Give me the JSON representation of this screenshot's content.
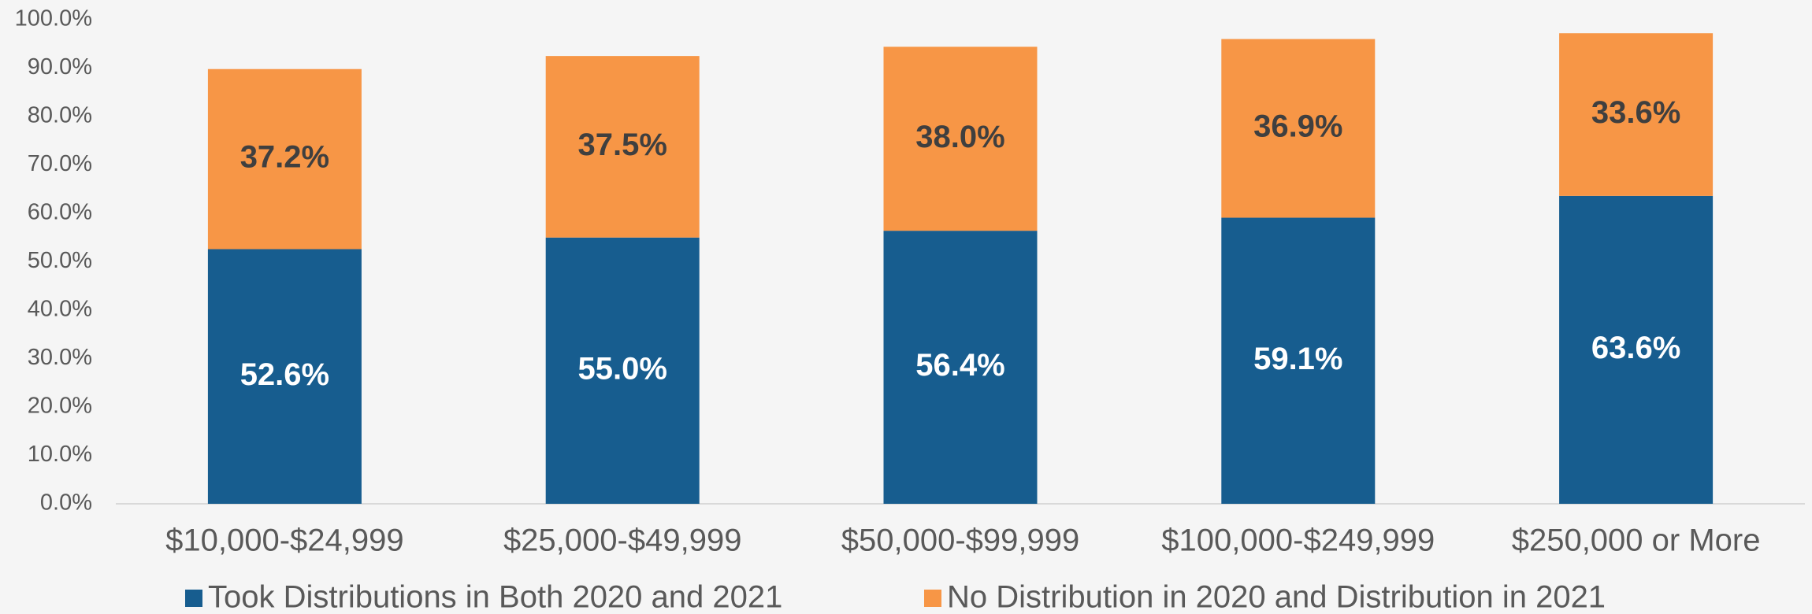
{
  "chart_data": {
    "type": "stacked_bar",
    "categories": [
      "$10,000-$24,999",
      "$25,000-$49,999",
      "$50,000-$99,999",
      "$100,000-$249,999",
      "$250,000 or More"
    ],
    "series": [
      {
        "name": "Took Distributions in Both 2020 and 2021",
        "color": "#175d8f",
        "values": [
          52.6,
          55.0,
          56.4,
          59.1,
          63.6
        ],
        "value_labels": [
          "52.6%",
          "55.0%",
          "56.4%",
          "59.1%",
          "63.6%"
        ]
      },
      {
        "name": "No Distribution in 2020 and Distribution in 2021",
        "color": "#f79646",
        "values": [
          37.2,
          37.5,
          38.0,
          36.9,
          33.6
        ],
        "value_labels": [
          "37.2%",
          "37.5%",
          "38.0%",
          "36.9%",
          "33.6%"
        ]
      }
    ],
    "ylim": [
      0,
      100
    ],
    "yticks": [
      {
        "value": 0,
        "label": "0.0%"
      },
      {
        "value": 10,
        "label": "10.0%"
      },
      {
        "value": 20,
        "label": "20.0%"
      },
      {
        "value": 30,
        "label": "30.0%"
      },
      {
        "value": 40,
        "label": "40.0%"
      },
      {
        "value": 50,
        "label": "50.0%"
      },
      {
        "value": 60,
        "label": "60.0%"
      },
      {
        "value": 70,
        "label": "70.0%"
      },
      {
        "value": 80,
        "label": "80.0%"
      },
      {
        "value": 90,
        "label": "90.0%"
      },
      {
        "value": 100,
        "label": "100.0%"
      }
    ],
    "grid": false,
    "legend": "bottom"
  }
}
